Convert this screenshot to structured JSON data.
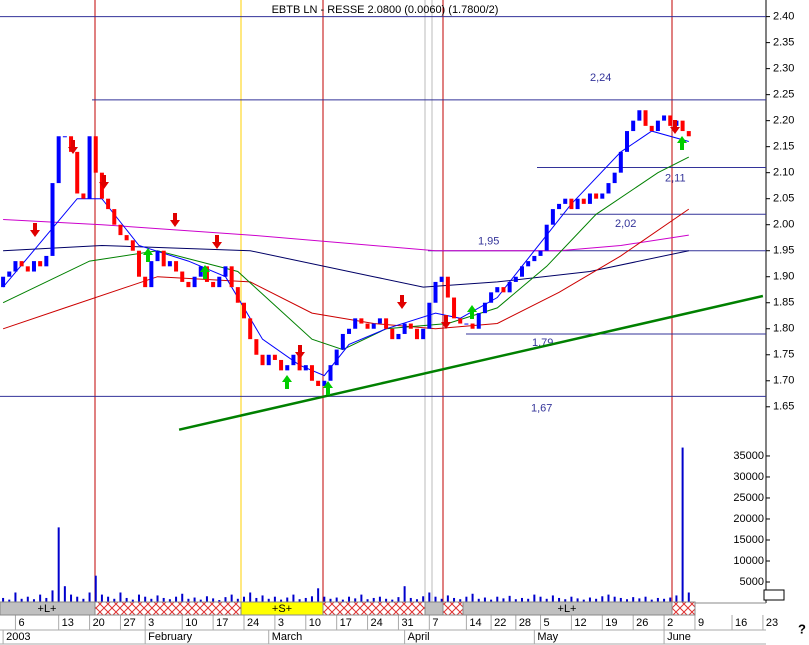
{
  "chart_data": {
    "type": "candlestick",
    "title": "EBTB LN - RESSE 2.0800 (0.0060) (1.7800/2)",
    "xlim": [
      -0.5,
      123.5
    ],
    "xticks": [
      {
        "value": 2,
        "label": "6"
      },
      {
        "value": 9,
        "label": "13"
      },
      {
        "value": 14,
        "label": "20"
      },
      {
        "value": 19,
        "label": "27"
      },
      {
        "value": 23,
        "label": "3"
      },
      {
        "value": 29,
        "label": "10"
      },
      {
        "value": 34,
        "label": "17"
      },
      {
        "value": 39,
        "label": "24"
      },
      {
        "value": 44,
        "label": "3"
      },
      {
        "value": 49,
        "label": "10"
      },
      {
        "value": 54,
        "label": "17"
      },
      {
        "value": 59,
        "label": "24"
      },
      {
        "value": 64,
        "label": "31"
      },
      {
        "value": 69,
        "label": "7"
      },
      {
        "value": 75,
        "label": "14"
      },
      {
        "value": 79,
        "label": "22"
      },
      {
        "value": 83,
        "label": "28"
      },
      {
        "value": 87,
        "label": "5"
      },
      {
        "value": 92,
        "label": "12"
      },
      {
        "value": 97,
        "label": "19"
      },
      {
        "value": 102,
        "label": "26"
      },
      {
        "value": 107,
        "label": "2"
      },
      {
        "value": 112,
        "label": "9"
      },
      {
        "value": 118,
        "label": "16"
      },
      {
        "value": 123,
        "label": "23"
      }
    ],
    "month_labels": [
      {
        "value": 0,
        "label": "2003"
      },
      {
        "value": 23,
        "label": "February"
      },
      {
        "value": 43,
        "label": "March"
      },
      {
        "value": 65,
        "label": "April"
      },
      {
        "value": 86,
        "label": "May"
      },
      {
        "value": 107,
        "label": "June"
      }
    ],
    "ylim": [
      1.59,
      2.43
    ],
    "yticks": [
      {
        "value": 2.4,
        "label": "2.40"
      },
      2.35,
      {
        "value": 2.3,
        "label": "2.30"
      },
      2.25,
      {
        "value": 2.2,
        "label": "2.20"
      },
      2.15,
      {
        "value": 2.1,
        "label": "2.10"
      },
      2.05,
      {
        "value": 2.0,
        "label": "2.00"
      },
      1.95,
      {
        "value": 1.9,
        "label": "1.90"
      },
      1.85,
      {
        "value": 1.8,
        "label": "1.80"
      },
      1.75,
      {
        "value": 1.7,
        "label": "1.70"
      },
      1.65
    ],
    "volume_ylim": [
      0,
      38800
    ],
    "volume_yticks": [
      5000,
      10000,
      15000,
      20000,
      25000,
      30000,
      35000
    ],
    "up_color": "#0000ff",
    "down_color": "#ff0000",
    "volume_color": "#0000cc",
    "open": [
      1.88,
      1.9,
      1.91,
      1.93,
      1.92,
      1.91,
      1.93,
      1.92,
      1.94,
      2.08,
      2.17,
      2.17,
      2.14,
      2.06,
      2.05,
      2.17,
      2.1,
      2.05,
      2.03,
      2.0,
      1.98,
      1.97,
      1.95,
      1.9,
      1.88,
      1.93,
      1.95,
      1.92,
      1.93,
      1.91,
      1.89,
      1.88,
      1.9,
      1.92,
      1.89,
      1.88,
      1.9,
      1.92,
      1.88,
      1.85,
      1.82,
      1.78,
      1.75,
      1.73,
      1.75,
      1.74,
      1.72,
      1.73,
      1.75,
      1.72,
      1.73,
      1.7,
      1.69,
      1.7,
      1.73,
      1.76,
      1.79,
      1.8,
      1.82,
      1.81,
      1.8,
      1.81,
      1.82,
      1.8,
      1.78,
      1.79,
      1.81,
      1.8,
      1.78,
      1.8,
      1.85,
      1.89,
      1.9,
      1.86,
      1.82,
      1.81,
      1.81,
      1.8,
      1.83,
      1.85,
      1.87,
      1.88,
      1.87,
      1.89,
      1.9,
      1.92,
      1.93,
      1.94,
      1.95,
      2.0,
      2.03,
      2.04,
      2.05,
      2.03,
      2.05,
      2.04,
      2.06,
      2.05,
      2.06,
      2.08,
      2.1,
      2.14,
      2.18,
      2.2,
      2.22,
      2.19,
      2.18,
      2.2,
      2.21,
      2.19,
      2.2,
      2.18
    ],
    "close": [
      1.9,
      1.91,
      1.93,
      1.92,
      1.91,
      1.93,
      1.92,
      1.94,
      2.08,
      2.17,
      2.17,
      2.14,
      2.06,
      2.05,
      2.17,
      2.1,
      2.05,
      2.03,
      2.0,
      1.98,
      1.97,
      1.95,
      1.9,
      1.88,
      1.93,
      1.95,
      1.92,
      1.93,
      1.91,
      1.89,
      1.88,
      1.9,
      1.92,
      1.89,
      1.88,
      1.9,
      1.92,
      1.88,
      1.85,
      1.82,
      1.78,
      1.75,
      1.73,
      1.75,
      1.74,
      1.72,
      1.73,
      1.75,
      1.72,
      1.73,
      1.7,
      1.69,
      1.7,
      1.73,
      1.76,
      1.79,
      1.8,
      1.82,
      1.81,
      1.8,
      1.81,
      1.82,
      1.8,
      1.78,
      1.79,
      1.81,
      1.8,
      1.78,
      1.8,
      1.85,
      1.89,
      1.9,
      1.86,
      1.82,
      1.81,
      1.81,
      1.8,
      1.83,
      1.85,
      1.87,
      1.88,
      1.87,
      1.89,
      1.9,
      1.92,
      1.93,
      1.94,
      1.95,
      2.0,
      2.03,
      2.04,
      2.05,
      2.03,
      2.05,
      2.04,
      2.06,
      2.05,
      2.06,
      2.08,
      2.1,
      2.14,
      2.18,
      2.2,
      2.22,
      2.19,
      2.18,
      2.2,
      2.21,
      2.19,
      2.2,
      2.18,
      2.17
    ],
    "volume": [
      1200,
      800,
      2500,
      1000,
      1500,
      900,
      2000,
      1200,
      3000,
      18000,
      4000,
      2000,
      1500,
      1000,
      2500,
      6500,
      2000,
      1500,
      1000,
      2500,
      1200,
      800,
      2000,
      1500,
      1000,
      1800,
      1200,
      900,
      1500,
      2200,
      1000,
      1300,
      800,
      1600,
      1100,
      700,
      1400,
      2000,
      1000,
      1500,
      2500,
      1200,
      1800,
      1000,
      1500,
      800,
      1300,
      2000,
      900,
      1200,
      1600,
      3500,
      1500,
      1000,
      1300,
      800,
      1500,
      1100,
      2000,
      900,
      1200,
      1500,
      1000,
      800,
      1400,
      4000,
      1200,
      900,
      1600,
      2500,
      1500,
      1000,
      1800,
      1200,
      900,
      1500,
      2200,
      1000,
      1300,
      800,
      1500,
      1100,
      1700,
      900,
      1200,
      1000,
      2000,
      1500,
      1000,
      1800,
      1200,
      900,
      1500,
      1100,
      800,
      1300,
      1000,
      1600,
      2000,
      1500,
      1200,
      900,
      1400,
      1100,
      1500,
      800,
      1200,
      1000,
      1300,
      1800,
      37000,
      2500
    ],
    "series": [
      {
        "color": "#cc00cc",
        "x": [
          0,
          16,
          40,
          70,
          90,
          100,
          111
        ],
        "values": [
          2.01,
          2.0,
          1.98,
          1.95,
          1.95,
          1.96,
          1.98
        ]
      },
      {
        "color": "#000066",
        "x": [
          0,
          16,
          40,
          60,
          68,
          80,
          95,
          111
        ],
        "values": [
          1.95,
          1.96,
          1.95,
          1.9,
          1.88,
          1.89,
          1.91,
          1.95
        ]
      },
      {
        "color": "#cc0000",
        "x": [
          0,
          10,
          25,
          40,
          50,
          60,
          70,
          80,
          90,
          100,
          111
        ],
        "values": [
          1.8,
          1.84,
          1.9,
          1.89,
          1.83,
          1.81,
          1.8,
          1.81,
          1.87,
          1.94,
          2.03
        ]
      },
      {
        "color": "#008000",
        "x": [
          0,
          14,
          25,
          38,
          50,
          55,
          62,
          72,
          80,
          88,
          96,
          106,
          111
        ],
        "values": [
          1.85,
          1.93,
          1.95,
          1.91,
          1.78,
          1.76,
          1.8,
          1.81,
          1.84,
          1.92,
          2.02,
          2.1,
          2.13
        ]
      },
      {
        "color": "#0000ff",
        "x": [
          0,
          12,
          16,
          22,
          30,
          36,
          42,
          48,
          52,
          56,
          62,
          70,
          74,
          80,
          86,
          92,
          100,
          105,
          111
        ],
        "values": [
          1.88,
          2.05,
          2.05,
          1.96,
          1.93,
          1.9,
          1.78,
          1.73,
          1.71,
          1.77,
          1.8,
          1.83,
          1.82,
          1.86,
          1.95,
          2.04,
          2.14,
          2.18,
          2.16
        ]
      }
    ],
    "trendline": {
      "color": "#008000",
      "x": [
        28.5,
        123
      ],
      "values": [
        1.606,
        1.863
      ]
    },
    "levels": [
      {
        "value": 2.4
      },
      {
        "value": 2.24,
        "label": "2,24"
      },
      {
        "value": 2.11,
        "label": "2,11"
      },
      {
        "value": 2.02,
        "label": "2,02"
      },
      {
        "value": 1.95,
        "label": "1,95"
      },
      {
        "value": 1.79,
        "label": "1,79"
      },
      {
        "value": 1.67,
        "label": "1,67"
      }
    ],
    "bands": [
      "+L+",
      "+S+",
      "+L+"
    ],
    "help": "?"
  }
}
